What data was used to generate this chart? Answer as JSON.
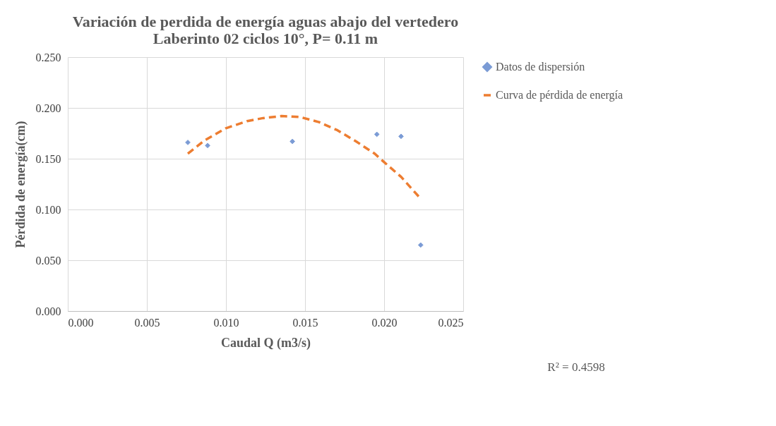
{
  "chart_data": {
    "type": "scatter",
    "title": "Variación de perdida de energía aguas abajo  del vertedero\nLaberinto 02 ciclos 10°, P= 0.11 m",
    "xlabel": "Caudal Q (m3/s)",
    "ylabel": "Pérdida de energía(cm)",
    "xlim": [
      0,
      0.025
    ],
    "xticks": [
      {
        "value": 0,
        "label": "0.000"
      },
      {
        "value": 0.005,
        "label": "0.005"
      },
      {
        "value": 0.01,
        "label": "0.010"
      },
      {
        "value": 0.015,
        "label": "0.015"
      },
      {
        "value": 0.02,
        "label": "0.020"
      },
      {
        "value": 0.025,
        "label": "0.025"
      }
    ],
    "ylim": [
      0,
      0.25
    ],
    "yticks": [
      {
        "value": 0,
        "label": "0.000"
      },
      {
        "value": 0.05,
        "label": "0.050"
      },
      {
        "value": 0.1,
        "label": "0.100"
      },
      {
        "value": 0.15,
        "label": "0.150"
      },
      {
        "value": 0.2,
        "label": "0.200"
      },
      {
        "value": 0.25,
        "label": "0.250"
      }
    ],
    "grid": true,
    "legend": "right",
    "series": [
      {
        "name": "Datos de dispersión",
        "marker": "diamond",
        "color": "#4472c4",
        "x": [
          0.00759,
          0.00884,
          0.0142,
          0.01954,
          0.02107,
          0.02231
        ],
        "values": [
          0.166,
          0.163,
          0.167,
          0.174,
          0.172,
          0.065
        ]
      },
      {
        "name": "Curva de pérdida de energía",
        "type": "line",
        "line_style": "dashed",
        "color": "#ed7d31",
        "x": [
          0.00759,
          0.00865,
          0.01,
          0.01134,
          0.01235,
          0.01352,
          0.0147,
          0.01588,
          0.01705,
          0.01823,
          0.0194,
          0.0199,
          0.02108,
          0.02223
        ],
        "values": [
          0.155,
          0.168,
          0.18,
          0.187,
          0.19,
          0.192,
          0.191,
          0.186,
          0.178,
          0.167,
          0.155,
          0.148,
          0.132,
          0.112
        ]
      }
    ],
    "annotations": [
      "R² = 0.4598"
    ]
  }
}
